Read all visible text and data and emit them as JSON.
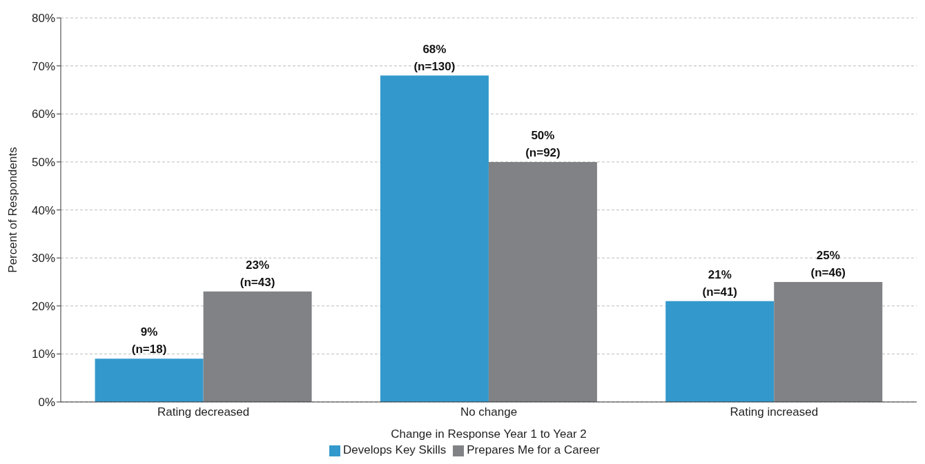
{
  "chart_data": {
    "type": "bar",
    "xlabel": "Change in Response Year 1 to Year 2",
    "ylabel": "Percent of Respondents",
    "categories": [
      "Rating decreased",
      "No change",
      "Rating increased"
    ],
    "series": [
      {
        "name": "Develops Key Skills",
        "color": "#3399cc",
        "values": [
          9,
          68,
          21
        ],
        "value_labels": [
          "9% (n=18)",
          "68% (n=130)",
          "21% (n=41)"
        ]
      },
      {
        "name": "Prepares Me for a Career",
        "color": "#808285",
        "values": [
          23,
          50,
          25
        ],
        "value_labels": [
          "23% (n=43)",
          "50% (n=92)",
          "25% (n=46)"
        ]
      }
    ],
    "ylim": [
      0,
      80
    ],
    "yticks": [
      {
        "value": 0,
        "label": "0%"
      },
      {
        "value": 10,
        "label": "10%"
      },
      {
        "value": 20,
        "label": "20%"
      },
      {
        "value": 30,
        "label": "30%"
      },
      {
        "value": 40,
        "label": "40%"
      },
      {
        "value": 50,
        "label": "50%"
      },
      {
        "value": 60,
        "label": "60%"
      },
      {
        "value": 70,
        "label": "70%"
      },
      {
        "value": 80,
        "label": "80%"
      }
    ],
    "grid": "y",
    "legend": "bottom"
  }
}
